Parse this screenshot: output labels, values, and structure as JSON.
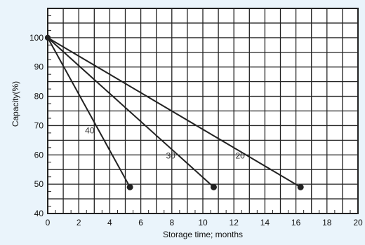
{
  "chart_data": {
    "type": "line",
    "title": "",
    "xlabel": "Storage time; months",
    "ylabel": "Capacity(%)",
    "xlim": [
      0,
      20
    ],
    "ylim": [
      40,
      110
    ],
    "xticks": [
      "0",
      "2",
      "4",
      "6",
      "8",
      "10",
      "12",
      "14",
      "16",
      "18",
      "20"
    ],
    "yticks": [
      "40",
      "50",
      "60",
      "70",
      "80",
      "90",
      "100"
    ],
    "grid": true,
    "series": [
      {
        "name": "40",
        "x": [
          0,
          5.3
        ],
        "y": [
          100,
          49
        ]
      },
      {
        "name": "30",
        "x": [
          0,
          10.7
        ],
        "y": [
          100,
          49
        ]
      },
      {
        "name": "20",
        "x": [
          0,
          16.3
        ],
        "y": [
          100,
          49
        ]
      }
    ],
    "colors": {
      "background": "#eaf4fb",
      "plot_bg": "#ffffff",
      "line": "#222222",
      "grid": "#222222"
    }
  }
}
